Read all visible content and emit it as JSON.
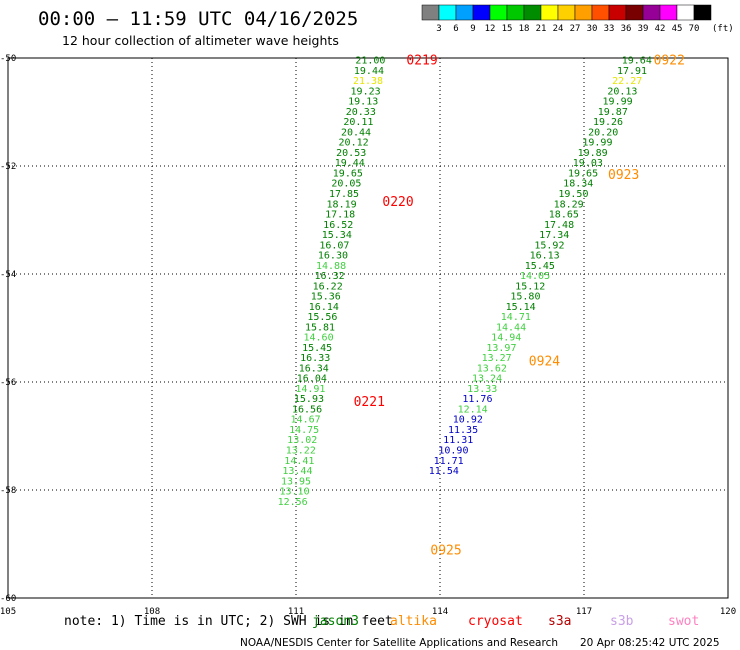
{
  "header": {
    "title": "00:00 – 11:59 UTC 04/16/2025",
    "subtitle": "12 hour collection of altimeter wave heights"
  },
  "colorbar": {
    "labels": [
      "3",
      "6",
      "9",
      "12",
      "15",
      "18",
      "21",
      "24",
      "27",
      "30",
      "33",
      "36",
      "39",
      "42",
      "45",
      "70"
    ],
    "colors": [
      "#808080",
      "#00ffff",
      "#00a0ff",
      "#0000ff",
      "#00ff00",
      "#00c800",
      "#008c00",
      "#ffff00",
      "#ffd000",
      "#ffa000",
      "#ff5000",
      "#c80000",
      "#780000",
      "#960096",
      "#ff00ff",
      "#ffffff",
      "#000000"
    ],
    "unit": "(ft)"
  },
  "footer": {
    "note": "note: 1) Time is in UTC; 2) SWH is in feet",
    "satellites": [
      {
        "name": "jason3",
        "color": "#008000"
      },
      {
        "name": "altika",
        "color": "#ff8c00"
      },
      {
        "name": "cryosat",
        "color": "#ff0000"
      },
      {
        "name": "s3a",
        "color": "#b40000"
      },
      {
        "name": "s3b",
        "color": "#c8a0e6"
      },
      {
        "name": "swot",
        "color": "#ff80c0"
      }
    ],
    "credit": "NOAA/NESDIS Center for Satellite Applications and Research",
    "timestamp": "20 Apr 08:25:42 UTC 2025"
  },
  "chart_data": {
    "type": "scatter",
    "x_ticks": [
      {
        "v": 105,
        "label": "105"
      },
      {
        "v": 108,
        "label": "108"
      },
      {
        "v": 111,
        "label": "111"
      },
      {
        "v": 114,
        "label": "114"
      },
      {
        "v": 117,
        "label": "117"
      },
      {
        "v": 120,
        "label": "120"
      }
    ],
    "y_ticks": [
      {
        "v": -50,
        "label": "-50"
      },
      {
        "v": -52,
        "label": "-52"
      },
      {
        "v": -54,
        "label": "-54"
      },
      {
        "v": -56,
        "label": "-56"
      },
      {
        "v": -58,
        "label": "-58"
      },
      {
        "v": -60,
        "label": "-60"
      }
    ],
    "xlim": [
      105,
      120
    ],
    "ylim": [
      -60,
      -50
    ],
    "grid": true,
    "time_labels": [
      {
        "text": "0219",
        "lon": 113.3,
        "lat": -50.03,
        "color": "#ff0000"
      },
      {
        "text": "0220",
        "lon": 112.8,
        "lat": -52.65,
        "color": "#ff0000"
      },
      {
        "text": "0221",
        "lon": 112.2,
        "lat": -56.35,
        "color": "#ff0000"
      },
      {
        "text": "0922",
        "lon": 118.45,
        "lat": -50.03,
        "color": "#ff8c00"
      },
      {
        "text": "0923",
        "lon": 117.5,
        "lat": -52.15,
        "color": "#ff8c00"
      },
      {
        "text": "0924",
        "lon": 115.85,
        "lat": -55.6,
        "color": "#ff8c00"
      },
      {
        "text": "0925",
        "lon": 113.8,
        "lat": -59.1,
        "color": "#ff8c00"
      }
    ],
    "series": [
      {
        "points": [
          [
            112.55,
            -50.03,
            "21.00",
            "#008000"
          ],
          [
            112.52,
            -50.22,
            "19.44",
            "#008000"
          ],
          [
            112.5,
            -50.41,
            "21.38",
            "#e6e600"
          ],
          [
            112.45,
            -50.6,
            "19.23",
            "#008000"
          ],
          [
            112.4,
            -50.79,
            "19.13",
            "#008000"
          ],
          [
            112.35,
            -50.98,
            "20.33",
            "#008000"
          ],
          [
            112.3,
            -51.17,
            "20.11",
            "#008000"
          ],
          [
            112.25,
            -51.36,
            "20.44",
            "#008000"
          ],
          [
            112.2,
            -51.55,
            "20.12",
            "#008000"
          ],
          [
            112.15,
            -51.74,
            "20.53",
            "#008000"
          ],
          [
            112.12,
            -51.93,
            "19.44",
            "#008000"
          ],
          [
            112.08,
            -52.12,
            "19.65",
            "#008000"
          ],
          [
            112.05,
            -52.31,
            "20.05",
            "#008000"
          ],
          [
            112.0,
            -52.5,
            "17.85",
            "#008000"
          ],
          [
            111.95,
            -52.69,
            "18.19",
            "#008000"
          ],
          [
            111.92,
            -52.88,
            "17.18",
            "#008000"
          ],
          [
            111.88,
            -53.07,
            "16.52",
            "#008000"
          ],
          [
            111.85,
            -53.26,
            "15.34",
            "#008000"
          ],
          [
            111.8,
            -53.45,
            "16.07",
            "#008000"
          ],
          [
            111.77,
            -53.64,
            "16.30",
            "#008000"
          ],
          [
            111.73,
            -53.83,
            "14.88",
            "#40d040"
          ],
          [
            111.7,
            -54.02,
            "16.32",
            "#008000"
          ],
          [
            111.66,
            -54.21,
            "16.22",
            "#008000"
          ],
          [
            111.62,
            -54.4,
            "15.36",
            "#008000"
          ],
          [
            111.58,
            -54.59,
            "16.14",
            "#008000"
          ],
          [
            111.55,
            -54.78,
            "15.56",
            "#008000"
          ],
          [
            111.5,
            -54.97,
            "15.81",
            "#008000"
          ],
          [
            111.47,
            -55.16,
            "14.60",
            "#40d040"
          ],
          [
            111.44,
            -55.35,
            "15.45",
            "#008000"
          ],
          [
            111.4,
            -55.54,
            "16.33",
            "#008000"
          ],
          [
            111.37,
            -55.73,
            "16.34",
            "#008000"
          ],
          [
            111.33,
            -55.92,
            "16.04",
            "#008000"
          ],
          [
            111.3,
            -56.11,
            "14.91",
            "#40d040"
          ],
          [
            111.27,
            -56.3,
            "15.93",
            "#008000"
          ],
          [
            111.23,
            -56.49,
            "16.56",
            "#008000"
          ],
          [
            111.2,
            -56.68,
            "14.67",
            "#40d040"
          ],
          [
            111.17,
            -56.87,
            "14.75",
            "#40d040"
          ],
          [
            111.13,
            -57.06,
            "13.02",
            "#40d040"
          ],
          [
            111.1,
            -57.25,
            "13.22",
            "#40d040"
          ],
          [
            111.07,
            -57.44,
            "14.41",
            "#40d040"
          ],
          [
            111.03,
            -57.63,
            "13.44",
            "#40d040"
          ],
          [
            111.0,
            -57.82,
            "13.95",
            "#40d040"
          ],
          [
            110.97,
            -58.01,
            "13.10",
            "#40d040"
          ],
          [
            110.93,
            -58.2,
            "12.56",
            "#40d040"
          ]
        ]
      },
      {
        "points": [
          [
            118.1,
            -50.03,
            "19.64",
            "#008000"
          ],
          [
            118.0,
            -50.22,
            "17.91",
            "#008000"
          ],
          [
            117.9,
            -50.41,
            "22.27",
            "#e6e600"
          ],
          [
            117.8,
            -50.6,
            "20.13",
            "#008000"
          ],
          [
            117.7,
            -50.79,
            "19.99",
            "#008000"
          ],
          [
            117.6,
            -50.98,
            "19.87",
            "#008000"
          ],
          [
            117.5,
            -51.17,
            "19.26",
            "#008000"
          ],
          [
            117.4,
            -51.36,
            "20.20",
            "#008000"
          ],
          [
            117.28,
            -51.55,
            "19.99",
            "#008000"
          ],
          [
            117.18,
            -51.74,
            "19.89",
            "#008000"
          ],
          [
            117.08,
            -51.93,
            "19.03",
            "#008000"
          ],
          [
            116.98,
            -52.12,
            "19.65",
            "#008000"
          ],
          [
            116.88,
            -52.31,
            "18.34",
            "#008000"
          ],
          [
            116.78,
            -52.5,
            "19.50",
            "#008000"
          ],
          [
            116.68,
            -52.69,
            "18.29",
            "#008000"
          ],
          [
            116.58,
            -52.88,
            "18.65",
            "#008000"
          ],
          [
            116.48,
            -53.07,
            "17.48",
            "#008000"
          ],
          [
            116.38,
            -53.26,
            "17.34",
            "#008000"
          ],
          [
            116.28,
            -53.45,
            "15.92",
            "#008000"
          ],
          [
            116.18,
            -53.64,
            "16.13",
            "#008000"
          ],
          [
            116.08,
            -53.83,
            "15.45",
            "#008000"
          ],
          [
            115.98,
            -54.02,
            "14.05",
            "#40d040"
          ],
          [
            115.88,
            -54.21,
            "15.12",
            "#008000"
          ],
          [
            115.78,
            -54.4,
            "15.80",
            "#008000"
          ],
          [
            115.68,
            -54.59,
            "15.14",
            "#008000"
          ],
          [
            115.58,
            -54.78,
            "14.71",
            "#40d040"
          ],
          [
            115.48,
            -54.97,
            "14.44",
            "#40d040"
          ],
          [
            115.38,
            -55.16,
            "14.94",
            "#40d040"
          ],
          [
            115.28,
            -55.35,
            "13.97",
            "#40d040"
          ],
          [
            115.18,
            -55.54,
            "13.27",
            "#40d040"
          ],
          [
            115.08,
            -55.73,
            "13.62",
            "#40d040"
          ],
          [
            114.98,
            -55.92,
            "13.24",
            "#40d040"
          ],
          [
            114.88,
            -56.11,
            "13.33",
            "#40d040"
          ],
          [
            114.78,
            -56.3,
            "11.76",
            "#0000c8"
          ],
          [
            114.68,
            -56.49,
            "12.14",
            "#40d040"
          ],
          [
            114.58,
            -56.68,
            "10.92",
            "#0000c8"
          ],
          [
            114.48,
            -56.87,
            "11.35",
            "#0000c8"
          ],
          [
            114.38,
            -57.06,
            "11.31",
            "#0000c8"
          ],
          [
            114.28,
            -57.25,
            "10.90",
            "#0000c8"
          ],
          [
            114.18,
            -57.44,
            "11.71",
            "#0000c8"
          ],
          [
            114.08,
            -57.63,
            "11.54",
            "#0000c8"
          ]
        ]
      }
    ]
  }
}
